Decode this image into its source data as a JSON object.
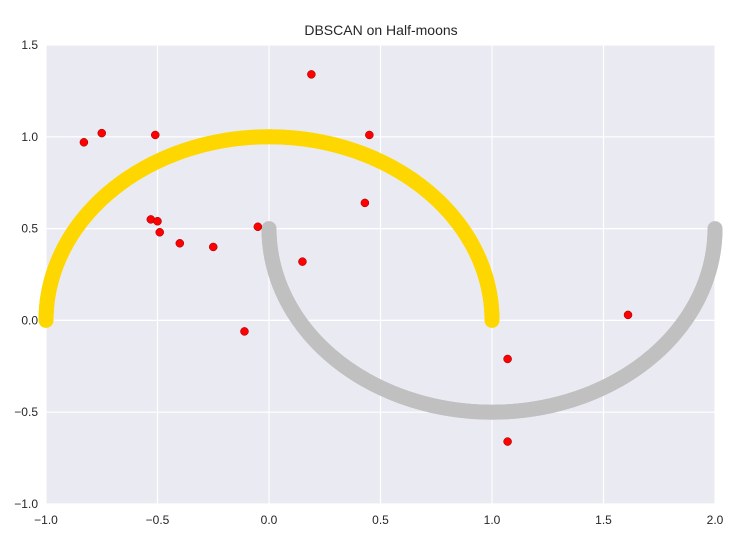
{
  "chart_data": {
    "type": "scatter",
    "title": "DBSCAN on Half-moons",
    "xlabel": "",
    "ylabel": "",
    "xlim": [
      -1.0,
      2.0
    ],
    "ylim": [
      -1.0,
      1.5
    ],
    "xticks": [
      -1.0,
      -0.5,
      0.0,
      0.5,
      1.0,
      1.5,
      2.0
    ],
    "yticks": [
      -1.0,
      -0.5,
      0.0,
      0.5,
      1.0,
      1.5
    ],
    "xtick_labels": [
      "−1.0",
      "−0.5",
      "0.0",
      "0.5",
      "1.0",
      "1.5",
      "2.0"
    ],
    "ytick_labels": [
      "−1.0",
      "−0.5",
      "0.0",
      "0.5",
      "1.0",
      "1.5"
    ],
    "grid": true,
    "background_color": "#eaeaf2",
    "grid_color": "#ffffff",
    "clusters": [
      {
        "label": 0,
        "color": "#ffd700",
        "shape": "upper-moon",
        "center": [
          0.0,
          0.0
        ],
        "radius": 1.0,
        "angle_range_deg": [
          0,
          180
        ]
      },
      {
        "label": 1,
        "color": "#c0c0c0",
        "shape": "lower-moon",
        "center": [
          1.0,
          0.5
        ],
        "radius": 1.0,
        "angle_range_deg": [
          180,
          360
        ]
      }
    ],
    "noise": {
      "color": "#ff0000",
      "points": [
        [
          0.19,
          1.34
        ],
        [
          -0.75,
          1.02
        ],
        [
          -0.83,
          0.97
        ],
        [
          -0.51,
          1.01
        ],
        [
          0.45,
          1.01
        ],
        [
          0.43,
          0.64
        ],
        [
          -0.53,
          0.55
        ],
        [
          -0.5,
          0.54
        ],
        [
          -0.49,
          0.48
        ],
        [
          -0.4,
          0.42
        ],
        [
          -0.25,
          0.4
        ],
        [
          -0.05,
          0.51
        ],
        [
          0.15,
          0.32
        ],
        [
          -0.11,
          -0.06
        ],
        [
          1.07,
          -0.21
        ],
        [
          1.61,
          0.03
        ],
        [
          1.07,
          -0.66
        ]
      ]
    }
  }
}
